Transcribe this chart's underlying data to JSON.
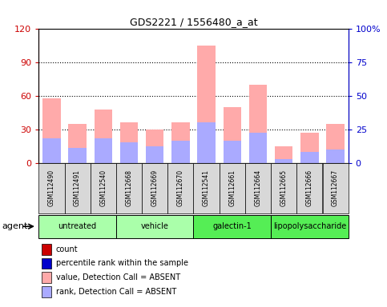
{
  "title": "GDS2221 / 1556480_a_at",
  "samples": [
    "GSM112490",
    "GSM112491",
    "GSM112540",
    "GSM112668",
    "GSM112669",
    "GSM112670",
    "GSM112541",
    "GSM112661",
    "GSM112664",
    "GSM112665",
    "GSM112666",
    "GSM112667"
  ],
  "pink_bar_values": [
    58,
    35,
    48,
    36,
    30,
    36,
    105,
    50,
    70,
    15,
    27,
    35
  ],
  "blue_bar_values": [
    22,
    13,
    22,
    18,
    15,
    20,
    36,
    20,
    27,
    3,
    10,
    12
  ],
  "left_ylim": [
    0,
    120
  ],
  "right_ylim": [
    0,
    100
  ],
  "left_yticks": [
    0,
    30,
    60,
    90,
    120
  ],
  "right_yticks": [
    0,
    25,
    50,
    75,
    100
  ],
  "right_yticklabels": [
    "0",
    "25",
    "50",
    "75",
    "100%"
  ],
  "left_yticklabels": [
    "0",
    "30",
    "60",
    "90",
    "120"
  ],
  "left_tick_color": "#cc0000",
  "right_tick_color": "#0000cc",
  "dotted_line_values": [
    30,
    60,
    90
  ],
  "pink_color": "#ffaaaa",
  "blue_color": "#aaaaff",
  "group_boundaries": [
    {
      "start": 0,
      "end": 2,
      "label": "untreated",
      "color": "#aaffaa"
    },
    {
      "start": 3,
      "end": 5,
      "label": "vehicle",
      "color": "#aaffaa"
    },
    {
      "start": 6,
      "end": 8,
      "label": "galectin-1",
      "color": "#55ee55"
    },
    {
      "start": 9,
      "end": 11,
      "label": "lipopolysaccharide",
      "color": "#55ee55"
    }
  ],
  "legend_items": [
    {
      "color": "#cc0000",
      "label": "count"
    },
    {
      "color": "#0000cc",
      "label": "percentile rank within the sample"
    },
    {
      "color": "#ffaaaa",
      "label": "value, Detection Call = ABSENT"
    },
    {
      "color": "#aaaaff",
      "label": "rank, Detection Call = ABSENT"
    }
  ],
  "agent_label": "agent",
  "bar_width": 0.7,
  "sample_box_color": "#d8d8d8",
  "figsize": [
    4.83,
    3.84
  ],
  "dpi": 100
}
